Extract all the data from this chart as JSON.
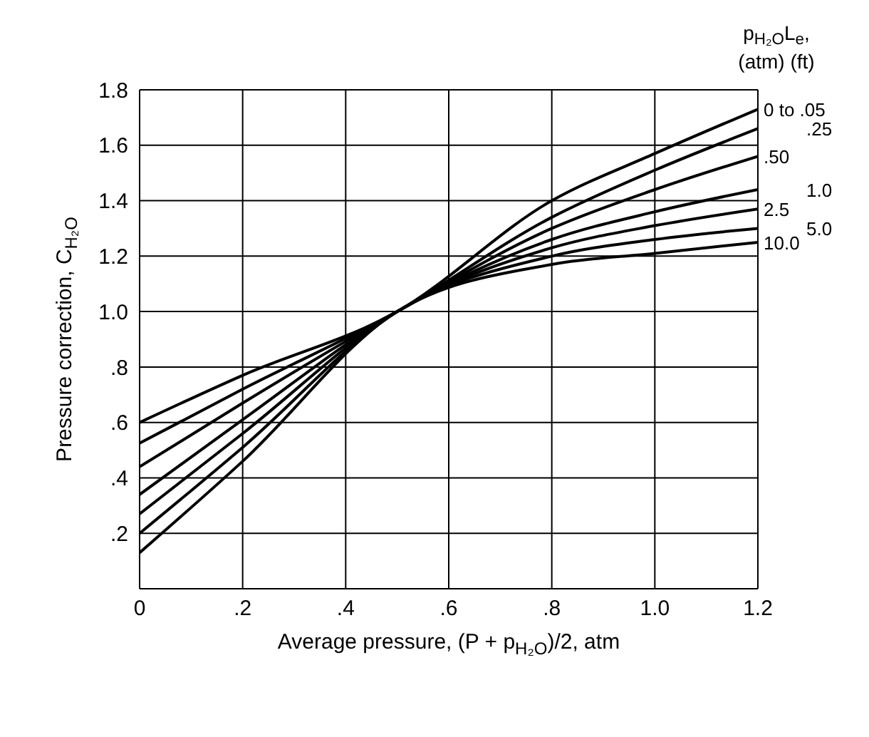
{
  "chart_data": {
    "type": "line",
    "xlabel": "Average pressure, (P + p$_{H₂O}$)/2, atm",
    "ylabel": "Pressure correction, C$_{H₂O}$",
    "legend_title": "p$_{H₂O}$L$_{e}$,\n(atm) (ft)",
    "x": [
      0,
      0.2,
      0.5,
      0.8,
      1.0,
      1.2
    ],
    "series": [
      {
        "name": "0 to .05",
        "color": "#000000",
        "values": [
          0.6,
          0.77,
          1.0,
          1.4,
          1.57,
          1.73
        ]
      },
      {
        "name": ".25",
        "color": "#000000",
        "values": [
          0.525,
          0.72,
          1.0,
          1.34,
          1.51,
          1.66
        ]
      },
      {
        "name": ".50",
        "color": "#000000",
        "values": [
          0.44,
          0.67,
          1.0,
          1.3,
          1.44,
          1.56
        ]
      },
      {
        "name": "1.0",
        "color": "#000000",
        "values": [
          0.34,
          0.61,
          1.0,
          1.26,
          1.36,
          1.44
        ]
      },
      {
        "name": "2.5",
        "color": "#000000",
        "values": [
          0.27,
          0.56,
          1.0,
          1.23,
          1.31,
          1.37
        ]
      },
      {
        "name": "5.0",
        "color": "#000000",
        "values": [
          0.2,
          0.51,
          1.0,
          1.2,
          1.26,
          1.3
        ]
      },
      {
        "name": "10.0",
        "color": "#000000",
        "values": [
          0.13,
          0.46,
          1.0,
          1.17,
          1.21,
          1.25
        ]
      }
    ],
    "xlim": [
      0,
      1.2
    ],
    "xticks": [
      0,
      {
        "value": 0.2,
        "label": ".2"
      },
      {
        "value": 0.4,
        "label": ".4"
      },
      {
        "value": 0.6,
        "label": ".6"
      },
      {
        "value": 0.8,
        "label": ".8"
      },
      {
        "value": 1.0,
        "label": "1.0"
      },
      {
        "value": 1.2,
        "label": "1.2"
      }
    ],
    "ylim": [
      0,
      1.8
    ],
    "yticks": [
      {
        "value": 0.2,
        "label": ".2"
      },
      {
        "value": 0.4,
        "label": ".4"
      },
      {
        "value": 0.6,
        "label": ".6"
      },
      {
        "value": 0.8,
        "label": ".8"
      },
      {
        "value": 1.0,
        "label": "1.0"
      },
      {
        "value": 1.2,
        "label": "1.2"
      },
      {
        "value": 1.4,
        "label": "1.4"
      },
      {
        "value": 1.6,
        "label": "1.6"
      },
      {
        "value": 1.8,
        "label": "1.8"
      }
    ],
    "grid": true,
    "marker": "none",
    "line_style": "solid"
  }
}
